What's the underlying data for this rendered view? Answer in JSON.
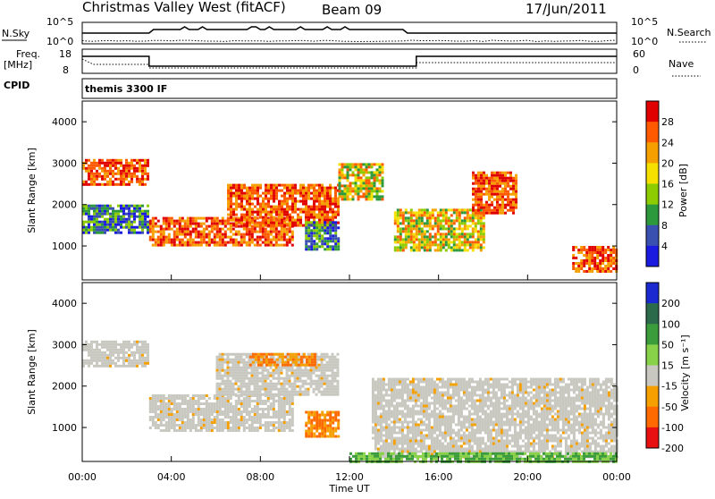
{
  "header": {
    "station": "Christmas Valley West (fitACF)",
    "beam": "Beam 09",
    "date": "17/Jun/2011"
  },
  "strip_panel": {
    "nsky_label": "N.Sky",
    "nsky_ticks": [
      "10^5",
      "10^0"
    ],
    "nsearch_label": "N.Search",
    "nsearch_ticks": [
      "10^5",
      "10^0"
    ],
    "freq_label_1": "Freq.",
    "freq_label_2": "[MHz]",
    "freq_ticks": [
      "18",
      "8"
    ],
    "nave_label": "Nave",
    "nave_ticks": [
      "60",
      "0"
    ],
    "cpid_label": "CPID",
    "cpid_value": "themis 3300 IF"
  },
  "chart_data": [
    {
      "type": "heatmap",
      "name": "power",
      "ylabel": "Slant Range [km]",
      "ylim": [
        180,
        4500
      ],
      "yticks": [
        "1000",
        "2000",
        "3000",
        "4000"
      ],
      "colorbar_label": "Power [dB]",
      "colorbar_ticks": [
        "28",
        "24",
        "20",
        "16",
        "12",
        "8",
        "4"
      ],
      "colorbar_colors": [
        "#e00000",
        "#ff5a00",
        "#f5a000",
        "#f5e000",
        "#8ccc00",
        "#2c9a3c",
        "#3a50b0",
        "#1a1ae0"
      ],
      "echo_regions": [
        {
          "t": [
            0.0,
            3.0
          ],
          "r": [
            2500,
            3100
          ],
          "level": "high"
        },
        {
          "t": [
            3.0,
            9.5
          ],
          "r": [
            1000,
            1700
          ],
          "level": "high"
        },
        {
          "t": [
            6.5,
            11.5
          ],
          "r": [
            1500,
            2500
          ],
          "level": "high"
        },
        {
          "t": [
            11.5,
            13.5
          ],
          "r": [
            2100,
            3000
          ],
          "level": "mid"
        },
        {
          "t": [
            14.0,
            18.0
          ],
          "r": [
            900,
            1900
          ],
          "level": "mid"
        },
        {
          "t": [
            17.5,
            19.5
          ],
          "r": [
            1800,
            2800
          ],
          "level": "high"
        },
        {
          "t": [
            22.0,
            24.0
          ],
          "r": [
            400,
            1000
          ],
          "level": "high"
        },
        {
          "t": [
            0.0,
            3.0
          ],
          "r": [
            1300,
            2000
          ],
          "level": "low"
        },
        {
          "t": [
            10.0,
            11.5
          ],
          "r": [
            900,
            1600
          ],
          "level": "low"
        }
      ]
    },
    {
      "type": "heatmap",
      "name": "velocity",
      "ylabel": "Slant Range [km]",
      "ylim": [
        180,
        4500
      ],
      "yticks": [
        "1000",
        "2000",
        "3000",
        "4000"
      ],
      "colorbar_label": "Velocity [m s⁻¹]",
      "colorbar_ticks": [
        "200",
        "100",
        "50",
        "15",
        "-15",
        "-50",
        "-100",
        "-200"
      ],
      "colorbar_colors": [
        "#1a2ad0",
        "#2c6a4c",
        "#3a9c3a",
        "#88d24a",
        "#c8c8c0",
        "#f5a000",
        "#ff6a00",
        "#e81010"
      ],
      "echo_regions": [
        {
          "t": [
            0.0,
            3.0
          ],
          "r": [
            2500,
            3100
          ],
          "level": "ground"
        },
        {
          "t": [
            3.0,
            9.5
          ],
          "r": [
            900,
            1800
          ],
          "level": "ground"
        },
        {
          "t": [
            6.0,
            11.5
          ],
          "r": [
            1800,
            2800
          ],
          "level": "ground"
        },
        {
          "t": [
            10.0,
            11.5
          ],
          "r": [
            800,
            1400
          ],
          "level": "neg"
        },
        {
          "t": [
            7.5,
            10.5
          ],
          "r": [
            2500,
            2800
          ],
          "level": "neg"
        },
        {
          "t": [
            13.0,
            24.0
          ],
          "r": [
            300,
            2200
          ],
          "level": "ground"
        },
        {
          "t": [
            12.0,
            24.0
          ],
          "r": [
            180,
            400
          ],
          "level": "pos"
        }
      ]
    }
  ],
  "x_axis": {
    "ticks": [
      "00:00",
      "04:00",
      "08:00",
      "12:00",
      "16:00",
      "20:00",
      "00:00"
    ],
    "label": "Time UT",
    "range_hours": [
      0,
      24
    ]
  }
}
